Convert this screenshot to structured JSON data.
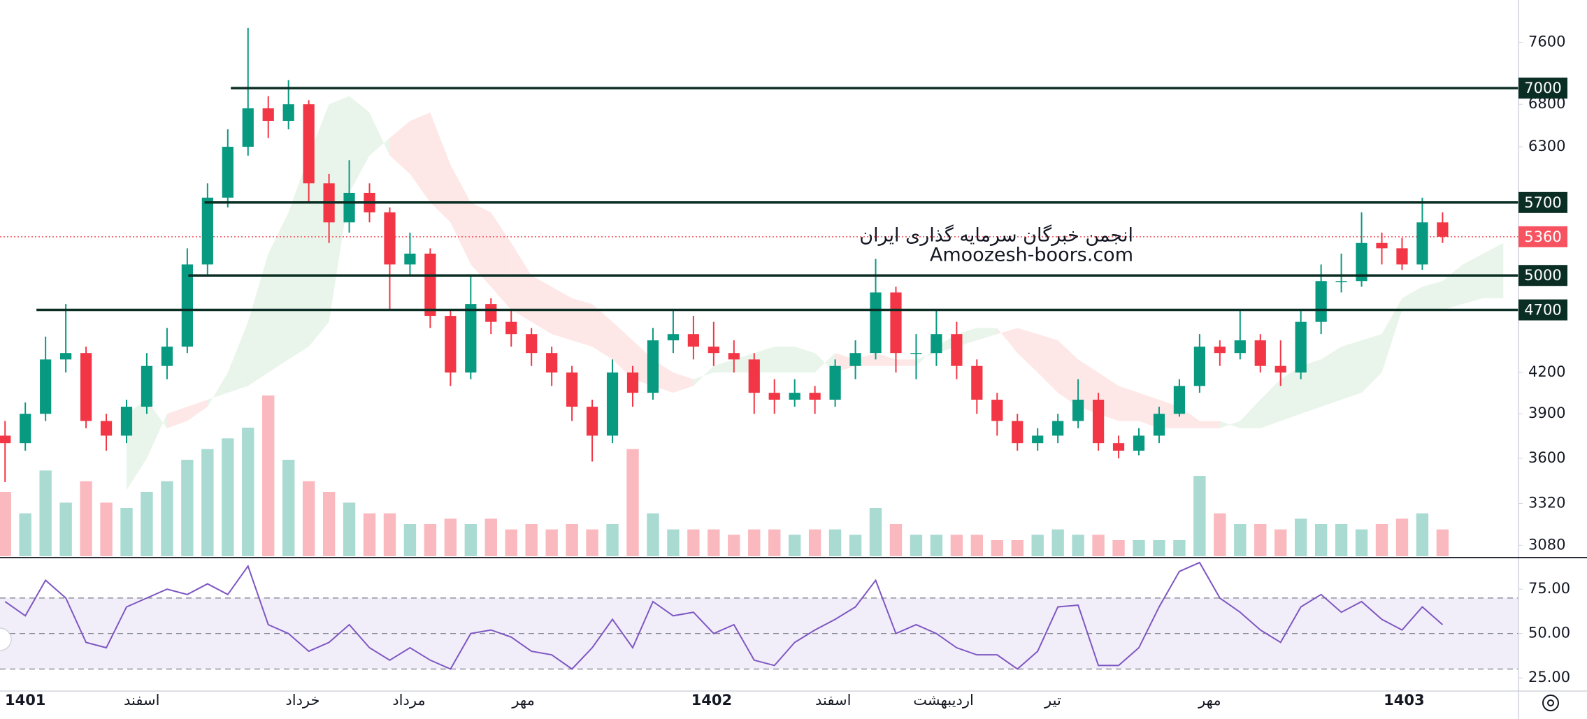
{
  "chart_data": {
    "type": "candlestick",
    "log_scale": true,
    "ylim": [
      3020,
      8200
    ],
    "yticks": [
      3080,
      3320,
      3600,
      3900,
      4200,
      6300,
      6800,
      7600
    ],
    "xlim": [
      -0.25,
      74.75
    ],
    "xticks": [
      {
        "value": 6.75,
        "label": "اسفند"
      },
      {
        "value": 14.7,
        "label": "خرداد"
      },
      {
        "value": 19.95,
        "label": "مرداد"
      },
      {
        "value": 25.6,
        "label": "مهر"
      },
      {
        "value": 40.9,
        "label": "اسفند"
      },
      {
        "value": 46.35,
        "label": "اردیبهشت"
      },
      {
        "value": 51.75,
        "label": "تیر"
      },
      {
        "value": 59.5,
        "label": "مهر"
      }
    ],
    "xticks_major": [
      {
        "value": 1,
        "label": "1401"
      },
      {
        "value": 34.9,
        "label": "1402"
      },
      {
        "value": 69.1,
        "label": "1403"
      }
    ],
    "open": [
      3750,
      3700,
      3900,
      4300,
      4350,
      3850,
      3750,
      3950,
      4250,
      4400,
      5100,
      5750,
      6300,
      6750,
      6600,
      6800,
      5900,
      5500,
      5800,
      5600,
      5100,
      5200,
      4650,
      4200,
      4750,
      4600,
      4500,
      4350,
      4200,
      3950,
      3750,
      4200,
      4050,
      4450,
      4500,
      4400,
      4350,
      4300,
      4050,
      4000,
      4050,
      4000,
      4250,
      4350,
      4850,
      4350,
      4350,
      4500,
      4250,
      4000,
      3850,
      3700,
      3750,
      3850,
      4000,
      3700,
      3650,
      3750,
      3900,
      4100,
      4400,
      4350,
      4450,
      4250,
      4200,
      4600,
      4950,
      4950,
      5300,
      5250,
      5100,
      5500
    ],
    "high": [
      3850,
      3980,
      4480,
      4750,
      4400,
      3900,
      4000,
      4350,
      4550,
      5250,
      5900,
      6500,
      7800,
      6900,
      7100,
      6850,
      6000,
      6150,
      5900,
      5650,
      5400,
      5250,
      4700,
      5000,
      4800,
      4700,
      4550,
      4400,
      4250,
      4000,
      4300,
      4250,
      4550,
      4700,
      4650,
      4600,
      4450,
      4350,
      4150,
      4150,
      4100,
      4300,
      4450,
      5150,
      4900,
      4500,
      4700,
      4600,
      4300,
      4050,
      3900,
      3800,
      3900,
      4150,
      4050,
      3750,
      3800,
      3950,
      4150,
      4500,
      4450,
      4700,
      4500,
      4450,
      4700,
      5100,
      5200,
      5600,
      5400,
      5350,
      5750,
      5600
    ],
    "low": [
      3450,
      3650,
      3850,
      4200,
      3800,
      3650,
      3700,
      3900,
      4150,
      4350,
      5000,
      5650,
      6200,
      6400,
      6500,
      5700,
      5300,
      5400,
      5500,
      4700,
      5000,
      4550,
      4100,
      4150,
      4500,
      4400,
      4250,
      4100,
      3850,
      3580,
      3700,
      3950,
      4000,
      4350,
      4300,
      4250,
      4200,
      3900,
      3900,
      3950,
      3900,
      3950,
      4150,
      4300,
      4200,
      4150,
      4250,
      4150,
      3900,
      3750,
      3650,
      3650,
      3700,
      3800,
      3650,
      3600,
      3620,
      3700,
      3880,
      4050,
      4250,
      4300,
      4200,
      4100,
      4150,
      4500,
      4850,
      4900,
      5100,
      5050,
      5050,
      5300
    ],
    "close": [
      3700,
      3900,
      4300,
      4350,
      3850,
      3750,
      3950,
      4250,
      4400,
      5100,
      5750,
      6300,
      6750,
      6600,
      6800,
      5900,
      5500,
      5800,
      5600,
      5100,
      5200,
      4650,
      4200,
      4750,
      4600,
      4500,
      4350,
      4200,
      3950,
      3750,
      4200,
      4050,
      4450,
      4500,
      4400,
      4350,
      4300,
      4050,
      4000,
      4050,
      4000,
      4250,
      4350,
      4850,
      4350,
      4350,
      4500,
      4250,
      4000,
      3850,
      3700,
      3750,
      3850,
      4000,
      3700,
      3650,
      3750,
      3900,
      4100,
      4400,
      4350,
      4450,
      4250,
      4200,
      4600,
      4950,
      4950,
      5300,
      5250,
      5100,
      5500,
      5360
    ],
    "volume": [
      60,
      40,
      80,
      50,
      70,
      50,
      45,
      60,
      70,
      90,
      100,
      110,
      120,
      150,
      90,
      70,
      60,
      50,
      40,
      40,
      30,
      30,
      35,
      30,
      35,
      25,
      30,
      25,
      30,
      25,
      30,
      100,
      40,
      25,
      25,
      25,
      20,
      25,
      25,
      20,
      25,
      25,
      20,
      45,
      30,
      20,
      20,
      20,
      20,
      15,
      15,
      20,
      25,
      20,
      20,
      15,
      15,
      15,
      15,
      75,
      40,
      30,
      30,
      25,
      35,
      30,
      30,
      25,
      30,
      35,
      40,
      25
    ],
    "up_color": "#089981",
    "down_color": "#f23645",
    "cloud": {
      "span_a": [
        null,
        null,
        null,
        null,
        null,
        null,
        3900,
        4000,
        3800,
        3850,
        3950,
        4200,
        4600,
        5200,
        5600,
        6200,
        6800,
        6900,
        6700,
        6200,
        6000,
        5700,
        5500,
        5100,
        4900,
        4700,
        4600,
        4500,
        4450,
        4400,
        4300,
        4150,
        4100,
        4050,
        4100,
        4250,
        4300,
        4350,
        4400,
        4400,
        4350,
        4200,
        4250,
        4250,
        4250,
        4250,
        4400,
        4500,
        4550,
        4550,
        4350,
        4200,
        4050,
        3950,
        3900,
        3850,
        3850,
        3800,
        3800,
        3800,
        3800,
        3850,
        4000,
        4150,
        4250,
        4300,
        4400,
        4450,
        4500,
        4800,
        4900,
        4950,
        5100,
        5200,
        5300
      ],
      "span_b": [
        null,
        null,
        null,
        null,
        null,
        null,
        3400,
        3600,
        3900,
        3950,
        4000,
        4050,
        4100,
        4200,
        4300,
        4400,
        4600,
        5800,
        6200,
        6400,
        6600,
        6700,
        6100,
        5700,
        5600,
        5300,
        5000,
        4900,
        4800,
        4750,
        4600,
        4450,
        4300,
        4200,
        4150,
        4200,
        4200,
        4200,
        4200,
        4200,
        4200,
        4350,
        4300,
        4350,
        4300,
        4300,
        4350,
        4400,
        4450,
        4500,
        4550,
        4500,
        4450,
        4300,
        4200,
        4100,
        4050,
        4000,
        3950,
        3850,
        3850,
        3800,
        3800,
        3850,
        3900,
        3950,
        4000,
        4050,
        4200,
        4700,
        4700,
        4700,
        4750,
        4800,
        4800
      ],
      "up_color": "#4caf50",
      "down_color": "#f44336"
    },
    "levels": {
      "values": [
        7000,
        5700,
        5000,
        4700
      ],
      "from": [
        11.15,
        9.85,
        9.05,
        1.55
      ],
      "color": "#0b2e24"
    },
    "last_price": {
      "value": 5360,
      "color": "#f7525f"
    },
    "watermark": [
      "انجمن خبرگان سرمایه گذاری ایران",
      "Amoozesh-boors.com"
    ],
    "rsi": {
      "values": [
        68,
        60,
        80,
        70,
        45,
        42,
        65,
        70,
        75,
        72,
        78,
        72,
        88,
        55,
        50,
        40,
        45,
        55,
        42,
        35,
        42,
        35,
        30,
        50,
        52,
        48,
        40,
        38,
        30,
        42,
        58,
        42,
        68,
        60,
        62,
        50,
        55,
        35,
        32,
        45,
        52,
        58,
        65,
        80,
        50,
        55,
        50,
        42,
        38,
        38,
        30,
        40,
        65,
        66,
        32,
        32,
        42,
        65,
        85,
        90,
        70,
        62,
        52,
        45,
        65,
        72,
        62,
        68,
        58,
        52,
        65,
        55
      ],
      "ylim": [
        17.6,
        92
      ],
      "yticks": [
        {
          "value": 75,
          "label": "75.00"
        },
        {
          "value": 50,
          "label": "50.00"
        },
        {
          "value": 25,
          "label": "25.00"
        }
      ],
      "bands": [
        70,
        50,
        30
      ],
      "color": "#7e57c2"
    }
  }
}
